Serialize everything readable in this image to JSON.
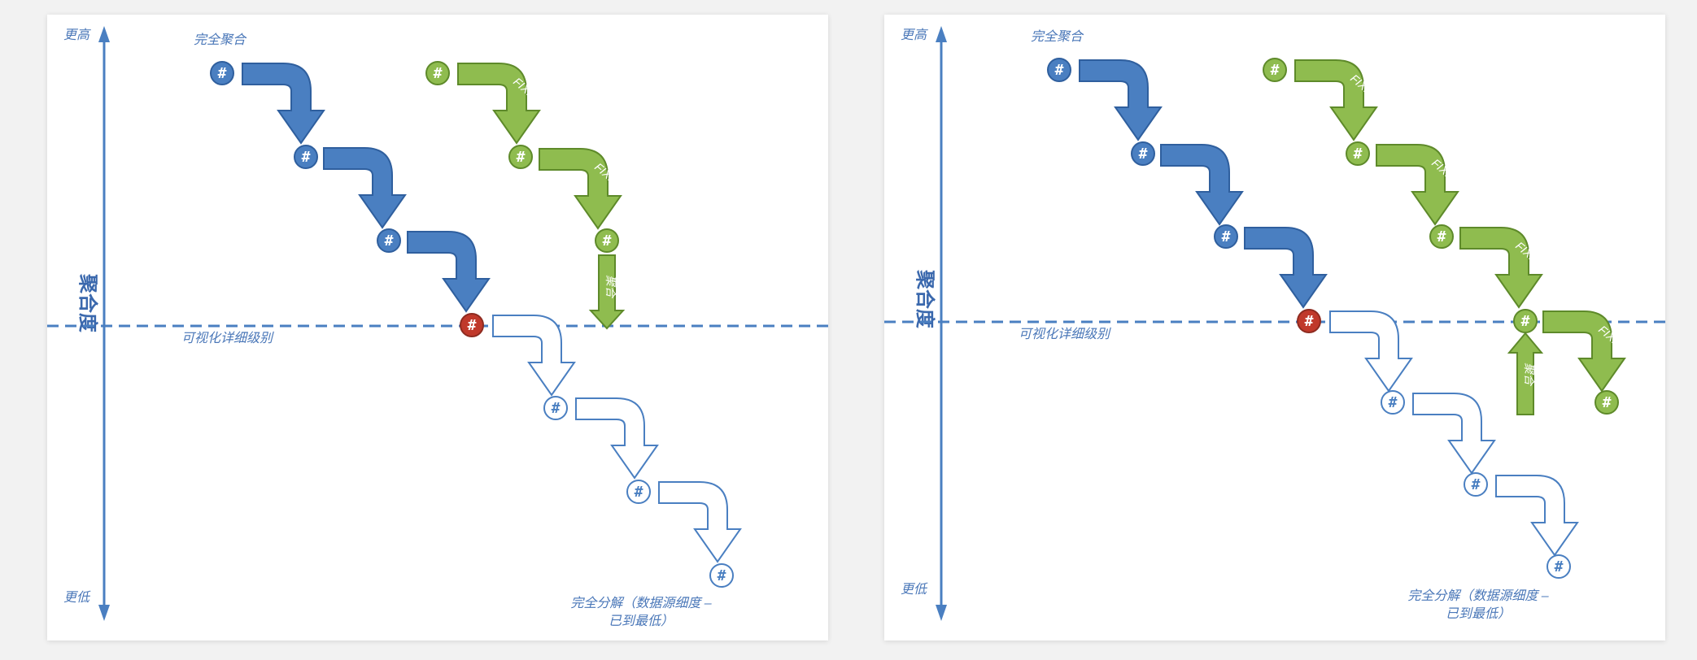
{
  "panels": [
    {
      "axis": {
        "top": "更高",
        "bottom": "更低",
        "title": "聚合度"
      },
      "labels": {
        "full_aggregation": "完全聚合",
        "viz_lod": "可视化详细级别",
        "full_disaggregation_line1": "完全分解（数据源细度 –",
        "full_disaggregation_line2": "已到最低）"
      },
      "node_symbol": "#",
      "fixed_label": "FIXED",
      "green_vertical_label": "聚合"
    },
    {
      "axis": {
        "top": "更高",
        "bottom": "更低",
        "title": "聚合度"
      },
      "labels": {
        "full_aggregation": "完全聚合",
        "viz_lod": "可视化详细级别",
        "full_disaggregation_line1": "完全分解（数据源细度 –",
        "full_disaggregation_line2": "已到最低）"
      },
      "node_symbol": "#",
      "fixed_label": "FIXED",
      "green_vertical_label": "聚合"
    }
  ],
  "colors": {
    "blue_fill": "#4a7fc1",
    "blue_stroke": "#2f5f9e",
    "green_fill": "#8fbc4f",
    "green_stroke": "#5e8a2a",
    "red_fill": "#c0392b",
    "outline_blue": "#4a7fc1",
    "axis": "#4a7fc1"
  }
}
